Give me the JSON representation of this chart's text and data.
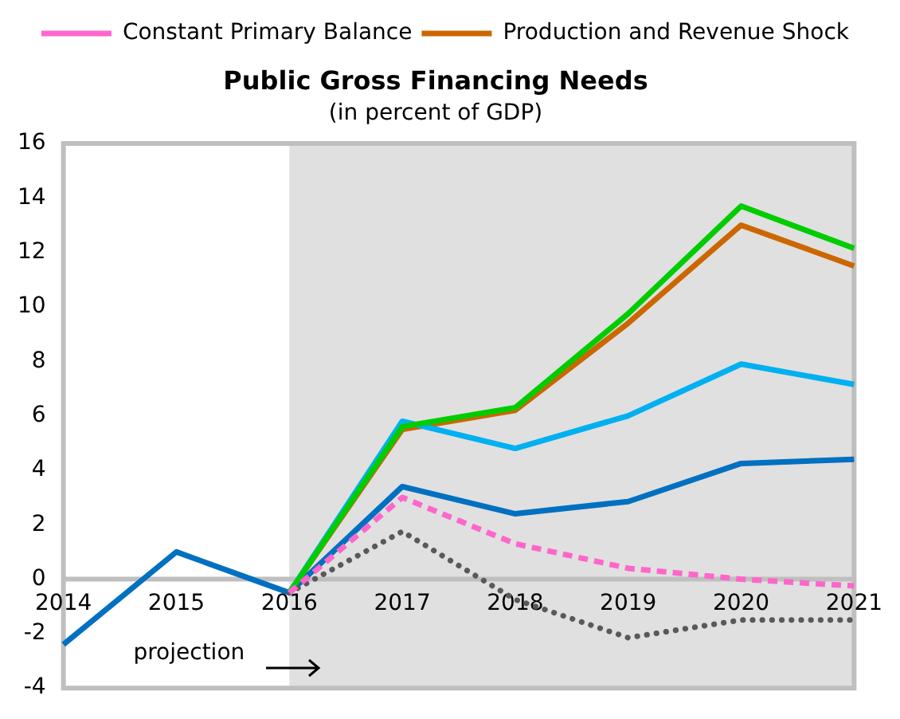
{
  "chart_data": {
    "type": "line",
    "title": "Public Gross Financing Needs",
    "subtitle": "(in percent of GDP)",
    "categories": [
      "2014",
      "2015",
      "2016",
      "2017",
      "2018",
      "2019",
      "2020",
      "2021"
    ],
    "series": [
      {
        "color": "#00cc00",
        "values": [
          null,
          null,
          -0.5,
          5.6,
          6.3,
          9.75,
          13.7,
          12.15
        ]
      },
      {
        "color": "#00b0f0",
        "values": [
          null,
          null,
          -0.5,
          5.8,
          4.8,
          6.0,
          7.9,
          7.15
        ]
      },
      {
        "color": "#0070c0",
        "values": [
          -2.4,
          1.0,
          -0.5,
          3.4,
          2.4,
          2.85,
          4.25,
          4.4
        ]
      },
      {
        "name": "Constant Primary Balance",
        "color": "#ff66cc",
        "line_style": "dashed",
        "values": [
          null,
          null,
          -0.5,
          3.0,
          1.3,
          0.4,
          0.0,
          -0.25
        ]
      },
      {
        "name": "Production and Revenue Shock",
        "color": "#cc6600",
        "values": [
          null,
          null,
          -0.5,
          5.5,
          6.2,
          9.4,
          13.0,
          11.5
        ]
      },
      {
        "color": "#595959",
        "line_style": "dotted",
        "values": [
          null,
          null,
          -0.5,
          1.75,
          -0.75,
          -2.15,
          -1.5,
          -1.5
        ]
      }
    ],
    "ylim": [
      -4,
      16
    ],
    "yticks": [
      -4,
      -2,
      0,
      2,
      4,
      6,
      8,
      10,
      12,
      14,
      16
    ],
    "bands": [
      {
        "axis": "x",
        "from": "2016",
        "to": "2021",
        "color": "#e0e0e0"
      }
    ],
    "annotations": [
      {
        "text": "projection",
        "x": "2016",
        "y": -2.5
      }
    ],
    "grid": false,
    "legend": "top"
  }
}
